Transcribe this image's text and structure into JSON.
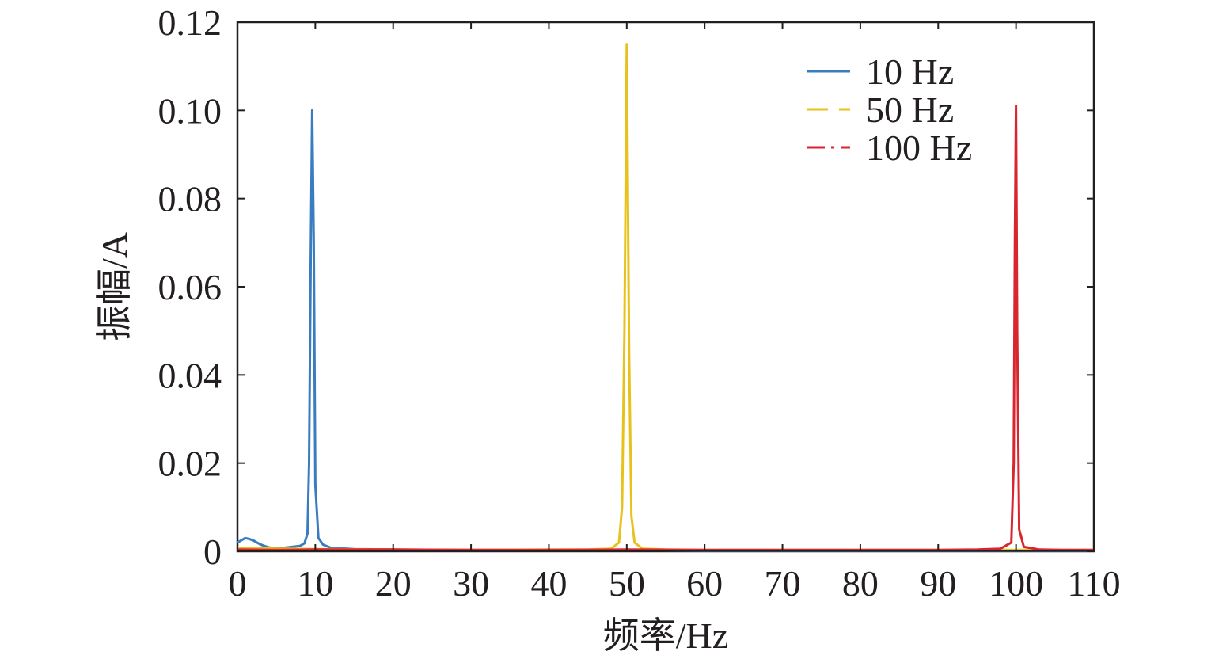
{
  "chart_data": {
    "type": "line",
    "title": "",
    "xlabel": "频率/Hz",
    "ylabel": "振幅/A",
    "xlim": [
      0,
      110
    ],
    "ylim": [
      0,
      0.12
    ],
    "x_ticks": [
      0,
      10,
      20,
      30,
      40,
      50,
      60,
      70,
      80,
      90,
      100,
      110
    ],
    "x_tick_labels": [
      "0",
      "10",
      "20",
      "30",
      "40",
      "50",
      "60",
      "70",
      "80",
      "90",
      "100",
      "110"
    ],
    "y_ticks": [
      0,
      0.02,
      0.04,
      0.06,
      0.08,
      0.1,
      0.12
    ],
    "y_tick_labels": [
      "0",
      "0.02",
      "0.04",
      "0.06",
      "0.08",
      "0.10",
      "0.12"
    ],
    "grid": false,
    "legend_position": "top-right",
    "series": [
      {
        "name": "10 Hz",
        "color": "#3a7cc0",
        "line_style": "solid",
        "x": [
          0,
          0.5,
          1,
          1.5,
          2,
          2.5,
          3,
          4,
          5,
          6,
          7,
          8,
          8.6,
          9.0,
          9.2,
          9.4,
          9.6,
          9.8,
          10.0,
          10.4,
          11,
          12,
          15,
          20,
          30,
          40,
          50,
          60,
          70,
          80,
          90,
          100,
          110
        ],
        "y": [
          0.002,
          0.0025,
          0.003,
          0.0028,
          0.0025,
          0.002,
          0.0015,
          0.0009,
          0.0007,
          0.0008,
          0.001,
          0.0012,
          0.0018,
          0.004,
          0.02,
          0.065,
          0.1,
          0.07,
          0.015,
          0.003,
          0.0015,
          0.0008,
          0.0005,
          0.0004,
          0.0003,
          0.0003,
          0.0003,
          0.0002,
          0.0002,
          0.0002,
          0.0002,
          0.0002,
          0.0002
        ]
      },
      {
        "name": "50 Hz",
        "color": "#e8c21c",
        "line_style": "dashed",
        "x": [
          0,
          5,
          10,
          20,
          30,
          40,
          45,
          48,
          49,
          49.4,
          49.7,
          50.0,
          50.3,
          50.6,
          51,
          52,
          55,
          60,
          70,
          80,
          90,
          100,
          110
        ],
        "y": [
          0.0008,
          0.0006,
          0.0005,
          0.0004,
          0.0003,
          0.0004,
          0.0004,
          0.0006,
          0.002,
          0.01,
          0.05,
          0.115,
          0.045,
          0.008,
          0.002,
          0.0006,
          0.0004,
          0.0003,
          0.0003,
          0.0003,
          0.0003,
          0.0003,
          0.0003
        ]
      },
      {
        "name": "100 Hz",
        "color": "#d9262e",
        "line_style": "dashdot",
        "x": [
          0,
          5,
          10,
          20,
          30,
          40,
          50,
          60,
          70,
          80,
          90,
          95,
          98,
          99.4,
          99.7,
          99.85,
          100.0,
          100.15,
          100.4,
          101,
          103,
          106,
          110
        ],
        "y": [
          0.0004,
          0.0003,
          0.0004,
          0.0004,
          0.0003,
          0.0003,
          0.0004,
          0.0003,
          0.0003,
          0.0003,
          0.0003,
          0.0004,
          0.0006,
          0.002,
          0.02,
          0.07,
          0.101,
          0.05,
          0.005,
          0.001,
          0.0004,
          0.0003,
          0.0003
        ]
      }
    ]
  }
}
